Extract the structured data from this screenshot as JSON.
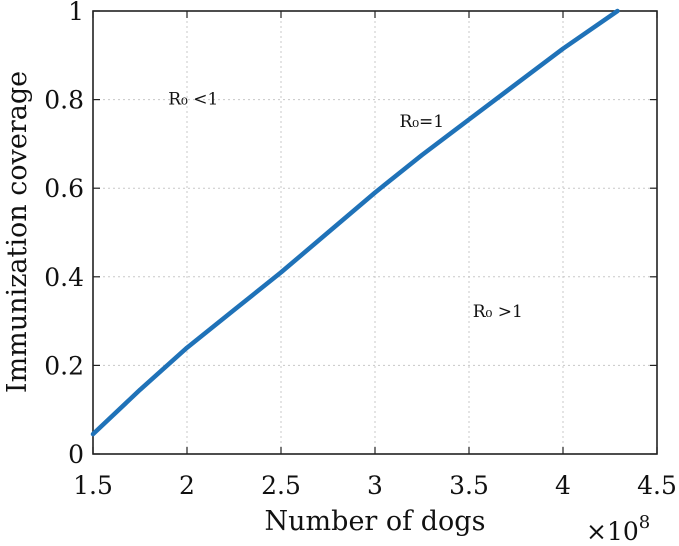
{
  "chart_data": {
    "type": "line",
    "xlabel": "Number of dogs",
    "ylabel": "Immunization coverage",
    "x_multiplier": {
      "base": "×10",
      "exponent": "8"
    },
    "xlim": [
      1.5,
      4.5
    ],
    "ylim": [
      0,
      1
    ],
    "grid": true,
    "x_ticks": [
      "1.5",
      "2",
      "2.5",
      "3",
      "3.5",
      "4",
      "4.5"
    ],
    "y_ticks": [
      "0",
      "0.2",
      "0.4",
      "0.6",
      "0.8",
      "1"
    ],
    "series": [
      {
        "color": "#1f72b8",
        "x": [
          1.5,
          1.75,
          2.0,
          2.25,
          2.5,
          2.75,
          3.0,
          3.25,
          3.5,
          3.75,
          4.0,
          4.29
        ],
        "y": [
          0.045,
          0.145,
          0.24,
          0.325,
          0.41,
          0.5,
          0.59,
          0.675,
          0.755,
          0.835,
          0.915,
          1.0
        ]
      }
    ],
    "annotations": [
      {
        "label": "R₀ <1",
        "x": 1.9,
        "y": 0.8
      },
      {
        "label": "R₀=1",
        "x": 3.13,
        "y": 0.75
      },
      {
        "label": "R₀ >1",
        "x": 3.52,
        "y": 0.32
      }
    ]
  }
}
